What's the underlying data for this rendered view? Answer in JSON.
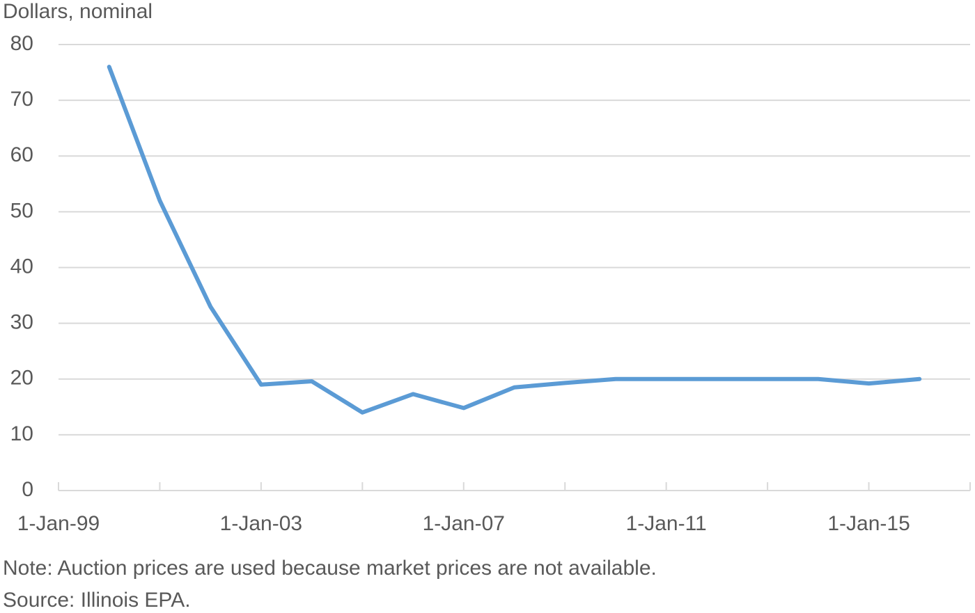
{
  "chart_data": {
    "type": "line",
    "y_axis_label": "Dollars, nominal",
    "x": [
      2000,
      2001,
      2002,
      2003,
      2004,
      2005,
      2006,
      2007,
      2008,
      2009,
      2010,
      2011,
      2012,
      2013,
      2014,
      2015,
      2016
    ],
    "series": [
      {
        "color": "#5b9bd5",
        "values": [
          76,
          52,
          33,
          19,
          19.6,
          14,
          17.3,
          14.8,
          18.5,
          19.3,
          20,
          20,
          20,
          20,
          20,
          19.2,
          20
        ]
      }
    ],
    "xlim": [
      1999,
      2017
    ],
    "xticks": [
      {
        "value": 1999,
        "label": "1-Jan-99"
      },
      {
        "value": 2003,
        "label": "1-Jan-03"
      },
      {
        "value": 2007,
        "label": "1-Jan-07"
      },
      {
        "value": 2011,
        "label": "1-Jan-11"
      },
      {
        "value": 2015,
        "label": "1-Jan-15"
      }
    ],
    "xminorticks": [
      2001,
      2005,
      2009,
      2013,
      2017
    ],
    "ylim": [
      0,
      80
    ],
    "yticks": [
      0,
      10,
      20,
      30,
      40,
      50,
      60,
      70,
      80
    ],
    "grid": true,
    "note": "Note: Auction prices are used because market prices are not available.",
    "source": "Source: Illinois EPA."
  }
}
